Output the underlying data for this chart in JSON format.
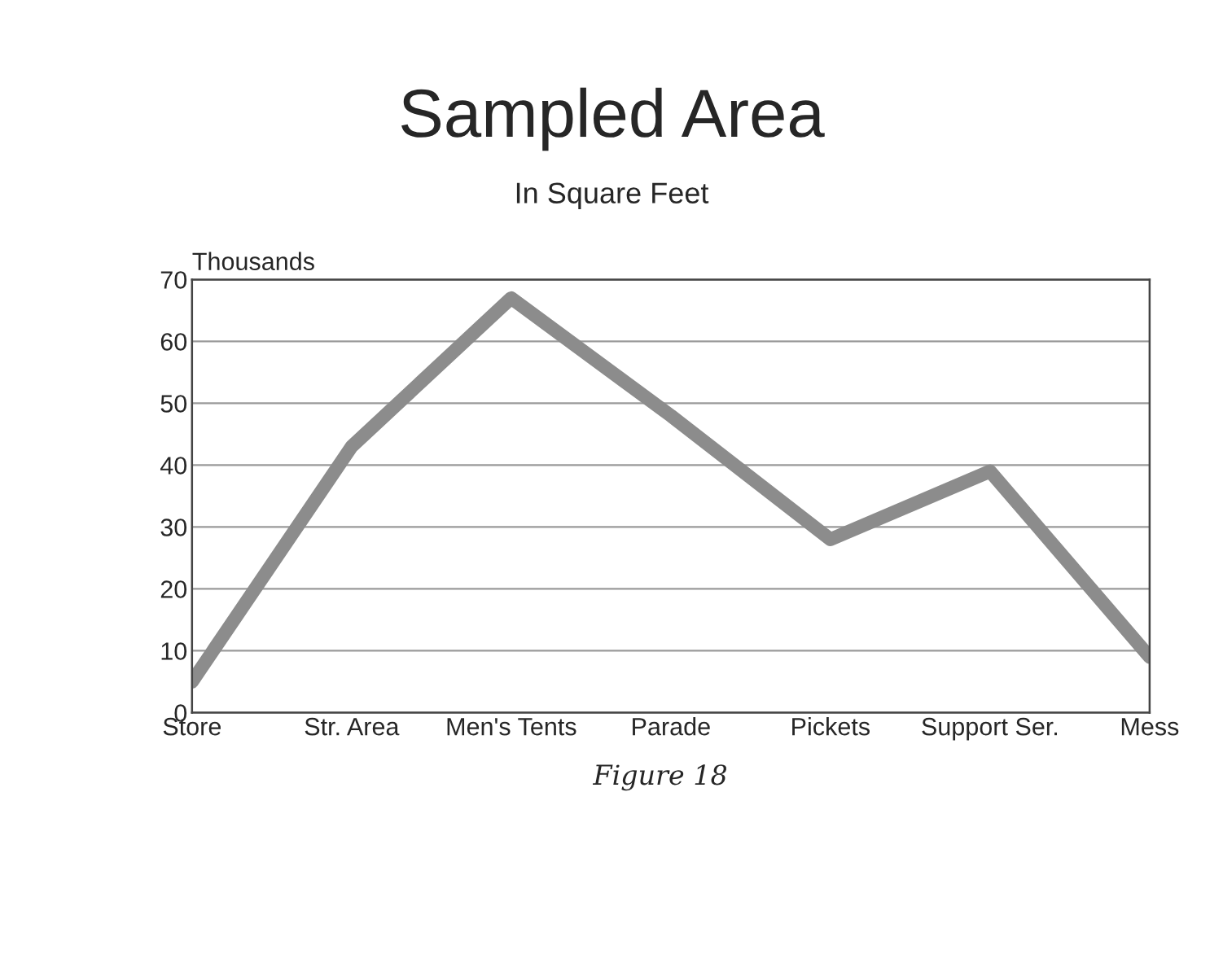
{
  "chart_data": {
    "type": "line",
    "title": "Sampled Area",
    "subtitle": "In Square Feet",
    "ylabel": "Thousands",
    "categories": [
      "Store",
      "Str. Area",
      "Men's Tents",
      "Parade",
      "Pickets",
      "Support Ser.",
      "Mess"
    ],
    "series": [
      {
        "color": "#8c8c8c",
        "values": [
          5,
          43,
          67,
          48,
          28,
          39,
          9
        ]
      }
    ],
    "ylim": [
      0,
      70
    ],
    "yticks": [
      0,
      10,
      20,
      30,
      40,
      50,
      60,
      70
    ],
    "grid": "y",
    "marker": "none",
    "line_style": "solid",
    "legend": false,
    "annotations": [
      "Figure 18"
    ]
  }
}
